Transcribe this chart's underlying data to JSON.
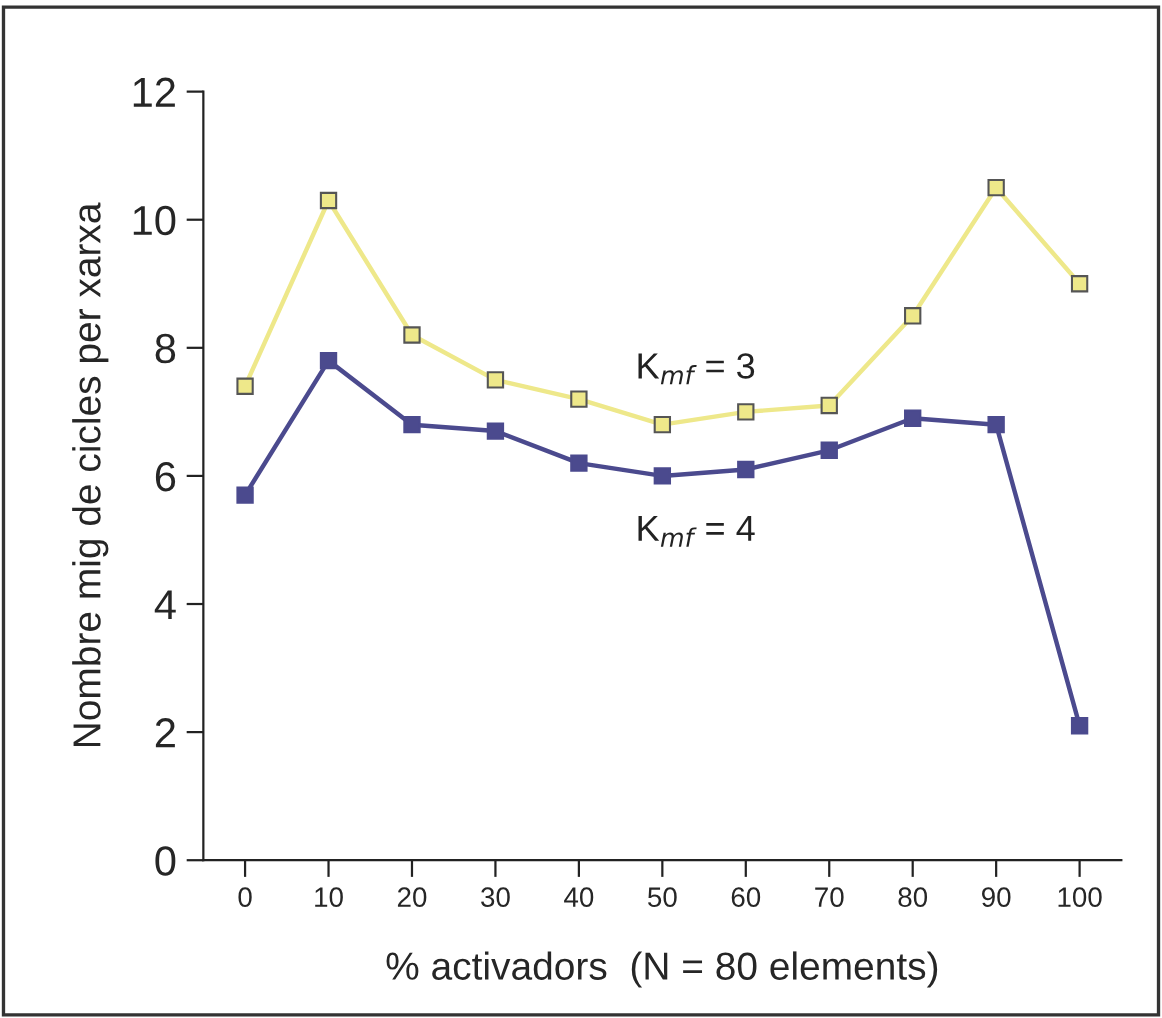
{
  "chart_data": {
    "type": "line",
    "xlabel": "% activadors  (N = 80 elements)",
    "ylabel": "Nombre mig de cicles per xarxa",
    "x": [
      0,
      10,
      20,
      30,
      40,
      50,
      60,
      70,
      80,
      90,
      100
    ],
    "series": [
      {
        "name": "K$_{mf}$ = 3",
        "color": "#eee88a",
        "values": [
          7.4,
          10.3,
          8.2,
          7.5,
          7.2,
          6.8,
          7.0,
          7.1,
          8.5,
          10.5,
          9.0
        ]
      },
      {
        "name": "K$_{mf}$ = 4",
        "color": "#4b4a8e",
        "values": [
          5.7,
          7.8,
          6.8,
          6.7,
          6.2,
          6.0,
          6.1,
          6.4,
          6.9,
          6.8,
          2.1
        ]
      }
    ],
    "xlim": [
      -5,
      105
    ],
    "ylim": [
      0,
      12
    ],
    "xticks": [
      0,
      10,
      20,
      30,
      40,
      50,
      60,
      70,
      80,
      90,
      100
    ],
    "yticks": [
      0,
      2,
      4,
      6,
      8,
      10,
      12
    ],
    "marker": "square",
    "line_style": "solid"
  }
}
